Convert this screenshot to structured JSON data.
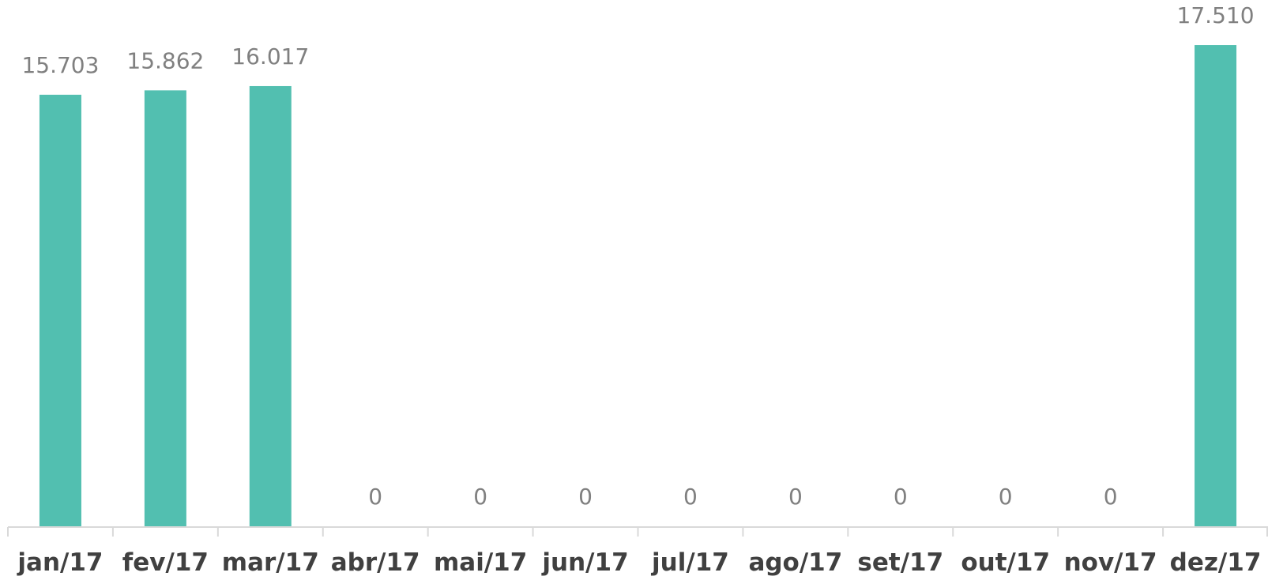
{
  "chart_data": {
    "type": "bar",
    "categories": [
      "jan/17",
      "fev/17",
      "mar/17",
      "abr/17",
      "mai/17",
      "jun/17",
      "jul/17",
      "ago/17",
      "set/17",
      "out/17",
      "nov/17",
      "dez/17"
    ],
    "values": [
      15703,
      15862,
      16017,
      0,
      0,
      0,
      0,
      0,
      0,
      0,
      0,
      17510
    ],
    "data_labels": [
      "15.703",
      "15.862",
      "16.017",
      "0",
      "0",
      "0",
      "0",
      "0",
      "0",
      "0",
      "0",
      "17.510"
    ],
    "title": "",
    "xlabel": "",
    "ylabel": "",
    "ylim": [
      0,
      18000
    ],
    "grid": false,
    "legend": "none",
    "bar_color": "#52bfb0",
    "axis_color": "#d9d9d9",
    "data_label_color": "#808080",
    "tick_label_color": "#404040"
  }
}
